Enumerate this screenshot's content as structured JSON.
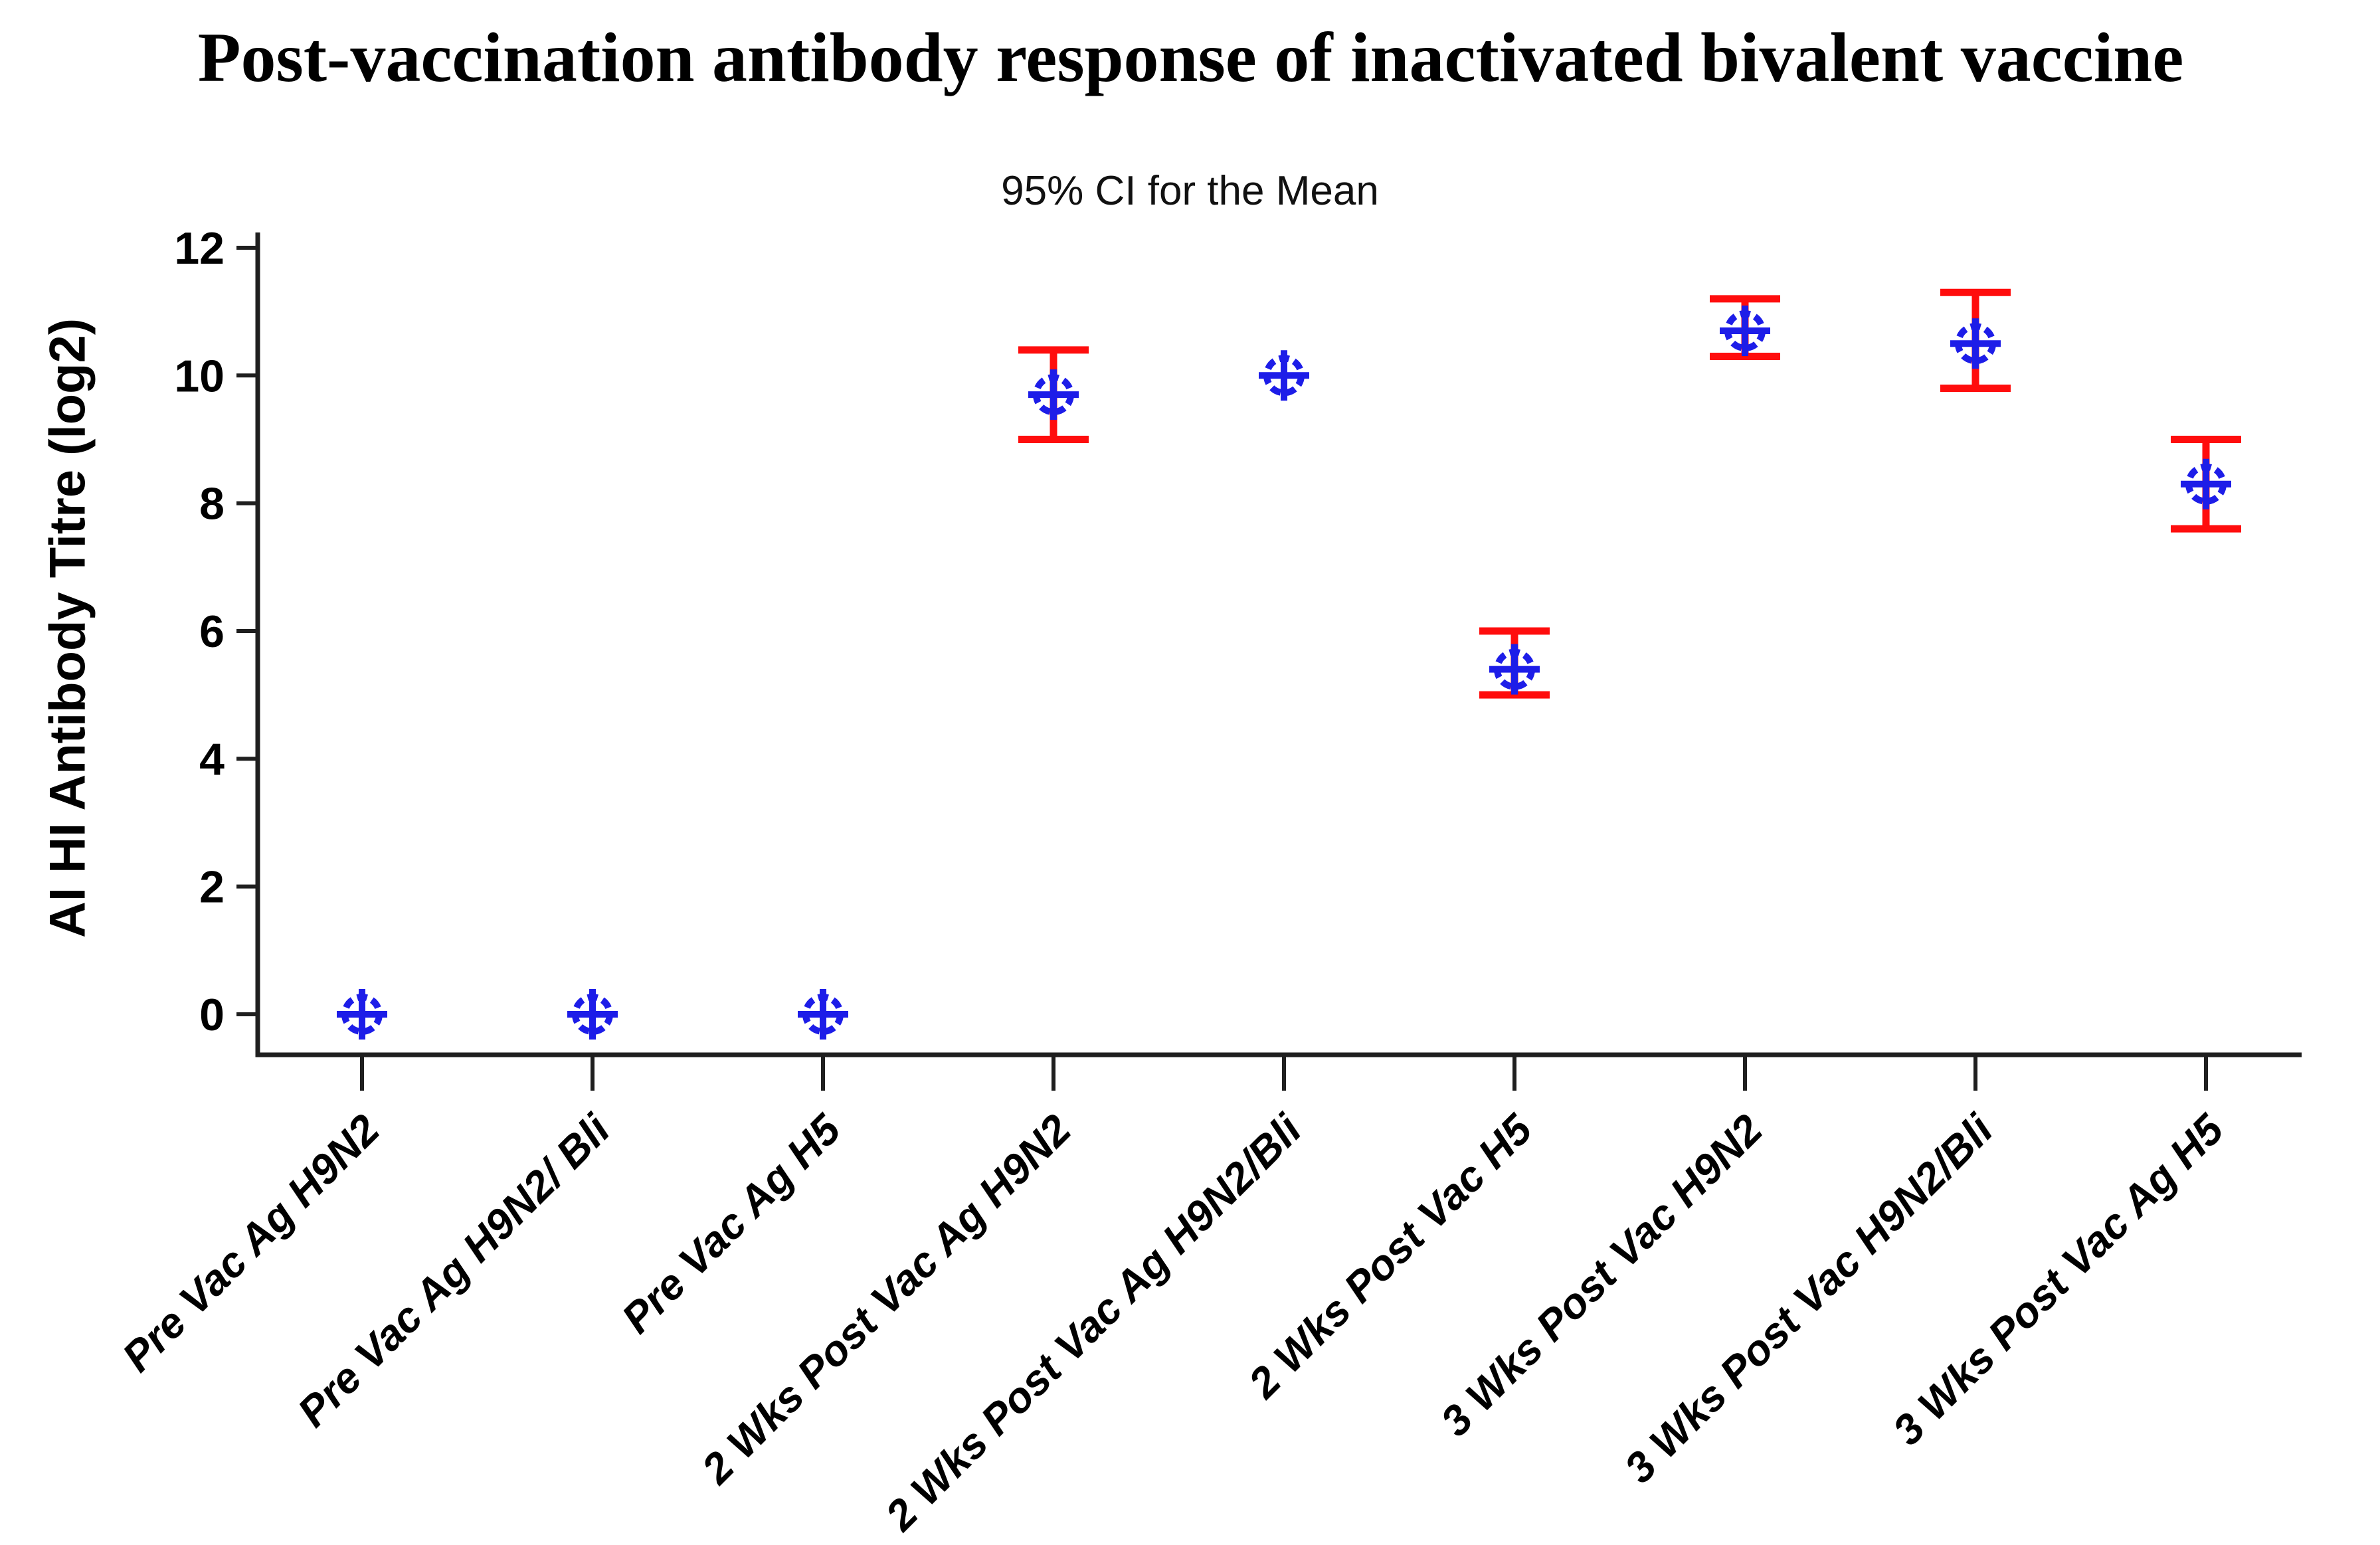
{
  "chart_data": {
    "type": "scatter",
    "subtype": "interval-plot-95ci",
    "title": "Post-vaccination antibody response of inactivated bivalent vaccine",
    "subtitle": "95% CI for the Mean",
    "xlabel": "",
    "ylabel": "AI HI Antibody Titre (log2)",
    "ylim": [
      0,
      12
    ],
    "yticks": [
      0,
      2,
      4,
      6,
      8,
      10,
      12
    ],
    "grid": false,
    "legend": null,
    "marker_symbol": "circled-plus",
    "marker_color": "#1d1de8",
    "errorbar_color": "#ff0d0d",
    "axis_color": "#1f1f1f",
    "text_color": "#000000",
    "points": [
      {
        "category": "Pre Vac Ag H9N2",
        "mean": 0,
        "ci_low": null,
        "ci_high": null
      },
      {
        "category": "Pre Vac Ag H9N2/ Bli",
        "mean": 0,
        "ci_low": null,
        "ci_high": null
      },
      {
        "category": "Pre Vac Ag H5",
        "mean": 0,
        "ci_low": null,
        "ci_high": null
      },
      {
        "category": "2 Wks Post Vac Ag H9N2",
        "mean": 9.7,
        "ci_low": 9.0,
        "ci_high": 10.4
      },
      {
        "category": "2 Wks Post Vac Ag H9N2/Bli",
        "mean": 10.0,
        "ci_low": null,
        "ci_high": null
      },
      {
        "category": "2 Wks Post Vac H5",
        "mean": 5.4,
        "ci_low": 5.0,
        "ci_high": 6.0
      },
      {
        "category": "3 Wks Post Vac H9N2",
        "mean": 10.7,
        "ci_low": 10.3,
        "ci_high": 11.2
      },
      {
        "category": "3 Wks Post Vac H9N2/Bli",
        "mean": 10.5,
        "ci_low": 9.8,
        "ci_high": 11.3
      },
      {
        "category": "3 Wks Post Vac Ag H5",
        "mean": 8.3,
        "ci_low": 7.6,
        "ci_high": 9.0
      }
    ]
  }
}
